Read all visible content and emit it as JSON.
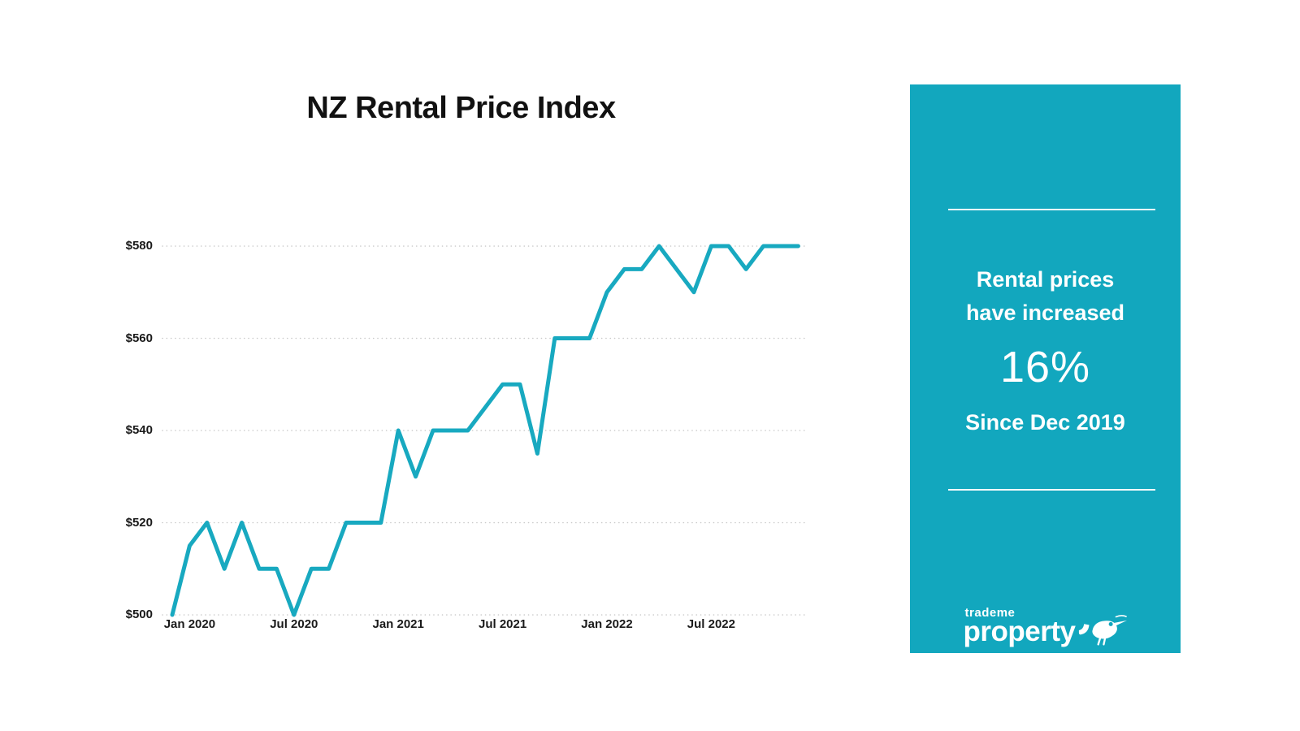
{
  "colors": {
    "panel": "#12A7BE",
    "line": "#18A9C0",
    "grid": "#C9C9C9",
    "text": "#1A1A1A",
    "panel_text": "#FFFFFF",
    "background": "#FFFFFF"
  },
  "chart_data": {
    "type": "line",
    "title": "NZ Rental Price Index",
    "x": [
      "Dec 2019",
      "Jan 2020",
      "Feb 2020",
      "Mar 2020",
      "Apr 2020",
      "May 2020",
      "Jun 2020",
      "Jul 2020",
      "Aug 2020",
      "Sep 2020",
      "Oct 2020",
      "Nov 2020",
      "Dec 2020",
      "Jan 2021",
      "Feb 2021",
      "Mar 2021",
      "Apr 2021",
      "May 2021",
      "Jun 2021",
      "Jul 2021",
      "Aug 2021",
      "Sep 2021",
      "Oct 2021",
      "Nov 2021",
      "Dec 2021",
      "Jan 2022",
      "Feb 2022",
      "Mar 2022",
      "Apr 2022",
      "May 2022",
      "Jun 2022",
      "Jul 2022",
      "Aug 2022",
      "Sep 2022",
      "Oct 2022",
      "Nov 2022",
      "Dec 2022"
    ],
    "values": [
      500,
      515,
      520,
      510,
      520,
      510,
      510,
      500,
      510,
      510,
      520,
      520,
      520,
      540,
      530,
      540,
      540,
      540,
      545,
      550,
      550,
      535,
      560,
      560,
      560,
      570,
      575,
      575,
      580,
      575,
      570,
      580,
      580,
      575,
      580,
      580,
      580
    ],
    "y_ticks": [
      "$500",
      "$520",
      "$540",
      "$560",
      "$580"
    ],
    "y_tick_values": [
      500,
      520,
      540,
      560,
      580
    ],
    "x_tick_labels": [
      "Jan 2020",
      "Jul 2020",
      "Jan 2021",
      "Jul 2021",
      "Jan 2022",
      "Jul 2022"
    ],
    "ylim": [
      500,
      580
    ],
    "xlabel": "",
    "ylabel": "",
    "grid": "horizontal-dotted",
    "legend": "none"
  },
  "panel": {
    "heading_line1": "Rental prices",
    "heading_line2": "have increased",
    "percent": "16%",
    "since": "Since Dec 2019",
    "logo_top": "trademe",
    "logo_bottom": "property",
    "logo_icon": "kiwi-bird-icon"
  }
}
